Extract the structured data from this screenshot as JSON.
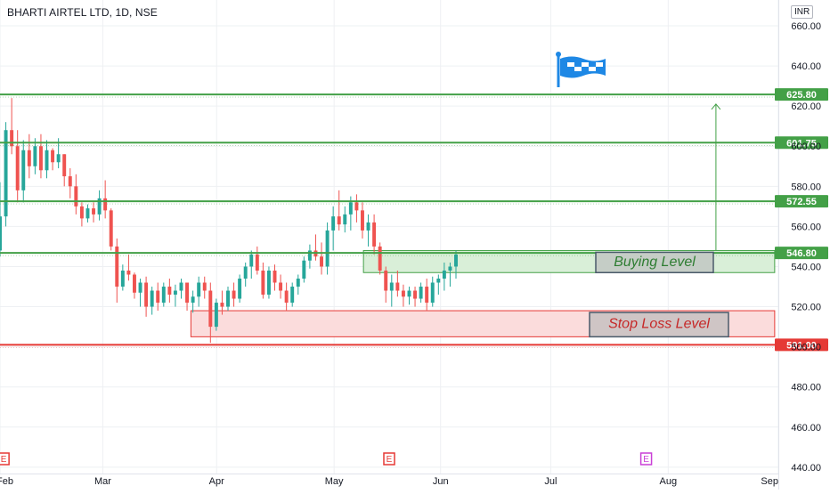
{
  "header": {
    "title": "BHARTI AIRTEL LTD, 1D, NSE",
    "currency": "INR"
  },
  "chart_data": {
    "type": "candlestick",
    "ylim": [
      438,
      668
    ],
    "yticks": [
      440,
      460,
      480,
      500,
      520,
      540,
      560,
      580,
      600,
      620,
      640,
      660
    ],
    "ytick_labels": [
      "440.00",
      "460.00",
      "480.00",
      "500.00",
      "520.00",
      "540.00",
      "560.00",
      "580.00",
      "600.00",
      "620.00",
      "640.00",
      "660.00"
    ],
    "xticks": [
      {
        "label": "Feb",
        "date": "2021-02-01"
      },
      {
        "label": "Mar",
        "date": "2021-03-01"
      },
      {
        "label": "Apr",
        "date": "2021-04-01"
      },
      {
        "label": "May",
        "date": "2021-05-03"
      },
      {
        "label": "Jun",
        "date": "2021-06-01"
      },
      {
        "label": "Jul",
        "date": "2021-07-01"
      },
      {
        "label": "Aug",
        "date": "2021-08-02"
      },
      {
        "label": "Sep",
        "date": "2021-09-01"
      }
    ],
    "date_start": "2021-02-01",
    "date_end": "2021-09-01",
    "candles": [
      [
        548,
        582,
        545,
        565
      ],
      [
        565,
        612,
        560,
        608
      ],
      [
        608,
        624,
        596,
        600
      ],
      [
        600,
        608,
        572,
        578
      ],
      [
        578,
        603,
        572,
        598
      ],
      [
        598,
        606,
        584,
        590
      ],
      [
        590,
        604,
        586,
        600
      ],
      [
        600,
        606,
        584,
        588
      ],
      [
        588,
        603,
        584,
        598
      ],
      [
        598,
        599,
        588,
        592
      ],
      [
        592,
        604,
        589,
        596
      ],
      [
        596,
        596,
        580,
        585
      ],
      [
        585,
        589,
        574,
        580
      ],
      [
        580,
        586,
        566,
        570
      ],
      [
        570,
        572,
        560,
        564
      ],
      [
        564,
        571,
        562,
        569
      ],
      [
        569,
        572,
        562,
        566
      ],
      [
        566,
        578,
        563,
        574
      ],
      [
        574,
        583,
        564,
        568
      ],
      [
        568,
        569,
        548,
        550
      ],
      [
        550,
        554,
        522,
        530
      ],
      [
        530,
        541,
        528,
        538
      ],
      [
        538,
        546,
        533,
        536
      ],
      [
        536,
        537,
        524,
        527
      ],
      [
        527,
        534,
        520,
        532
      ],
      [
        532,
        535,
        515,
        520
      ],
      [
        520,
        530,
        516,
        528
      ],
      [
        528,
        532,
        518,
        522
      ],
      [
        522,
        532,
        520,
        530
      ],
      [
        530,
        534,
        522,
        526
      ],
      [
        526,
        531,
        520,
        528
      ],
      [
        528,
        534,
        524,
        532
      ],
      [
        532,
        532,
        518,
        522
      ],
      [
        522,
        528,
        517,
        525
      ],
      [
        525,
        535,
        520,
        532
      ],
      [
        532,
        535,
        524,
        528
      ],
      [
        528,
        532,
        502,
        510
      ],
      [
        510,
        524,
        508,
        522
      ],
      [
        522,
        528,
        516,
        520
      ],
      [
        520,
        530,
        518,
        528
      ],
      [
        528,
        532,
        520,
        524
      ],
      [
        524,
        536,
        522,
        534
      ],
      [
        534,
        542,
        530,
        540
      ],
      [
        540,
        548,
        534,
        546
      ],
      [
        546,
        550,
        536,
        538
      ],
      [
        538,
        542,
        524,
        526
      ],
      [
        526,
        540,
        524,
        538
      ],
      [
        538,
        541,
        528,
        532
      ],
      [
        532,
        536,
        524,
        528
      ],
      [
        528,
        532,
        518,
        522
      ],
      [
        522,
        532,
        520,
        530
      ],
      [
        530,
        536,
        526,
        534
      ],
      [
        534,
        545,
        532,
        543
      ],
      [
        543,
        551,
        539,
        548
      ],
      [
        548,
        556,
        543,
        545
      ],
      [
        545,
        552,
        536,
        540
      ],
      [
        540,
        562,
        536,
        558
      ],
      [
        558,
        570,
        548,
        565
      ],
      [
        565,
        578,
        558,
        561
      ],
      [
        561,
        570,
        557,
        566
      ],
      [
        566,
        575,
        558,
        572
      ],
      [
        572,
        576,
        562,
        568
      ],
      [
        568,
        572,
        554,
        558
      ],
      [
        558,
        566,
        550,
        562
      ],
      [
        562,
        566,
        546,
        550
      ],
      [
        550,
        552,
        536,
        538
      ],
      [
        538,
        540,
        522,
        528
      ],
      [
        528,
        536,
        520,
        532
      ],
      [
        532,
        538,
        525,
        528
      ],
      [
        528,
        531,
        520,
        525
      ],
      [
        525,
        530,
        521,
        528
      ],
      [
        528,
        530,
        520,
        524
      ],
      [
        524,
        532,
        522,
        530
      ],
      [
        530,
        534,
        518,
        522
      ],
      [
        522,
        535,
        520,
        532
      ],
      [
        532,
        536,
        526,
        534
      ],
      [
        534,
        542,
        528,
        538
      ],
      [
        538,
        542,
        530,
        540
      ],
      [
        540,
        548,
        534,
        546
      ]
    ],
    "hlines": [
      {
        "value": 625.8,
        "label": "625.80",
        "color": "#43a047"
      },
      {
        "value": 601.75,
        "label": "601.75",
        "color": "#43a047"
      },
      {
        "value": 572.55,
        "label": "572.55",
        "color": "#43a047"
      },
      {
        "value": 546.8,
        "label": "546.80",
        "color": "#43a047"
      },
      {
        "value": 501.0,
        "label": "501.00",
        "color": "#e53935"
      }
    ],
    "zones": [
      {
        "name": "buying",
        "label": "Buying Level",
        "top": 548,
        "bottom": 537,
        "from": "2021-05-11",
        "to": "2021-08-31",
        "fill": "#d9efd8",
        "stroke": "#43a047",
        "text_color": "#2e7d32"
      },
      {
        "name": "stoploss",
        "label": "Stop Loss Level",
        "top": 518,
        "bottom": 505,
        "from": "2021-03-25",
        "to": "2021-08-31",
        "fill": "#fbdcdc",
        "stroke": "#e53935",
        "text_color": "#c62828"
      }
    ],
    "target_arrow": {
      "from_value": 548,
      "to_value": 621,
      "date": "2021-08-15"
    },
    "events": [
      {
        "label": "E",
        "date": "2021-02-02",
        "color": "#e53935"
      },
      {
        "label": "E",
        "date": "2021-05-18",
        "color": "#e53935"
      },
      {
        "label": "E",
        "date": "2021-07-27",
        "color": "#c93fd6"
      }
    ],
    "colors": {
      "up": "#26a69a",
      "down": "#ef5350",
      "grid": "#eef0f3",
      "axis_text": "#131722",
      "flag": "#1e88e5"
    }
  }
}
